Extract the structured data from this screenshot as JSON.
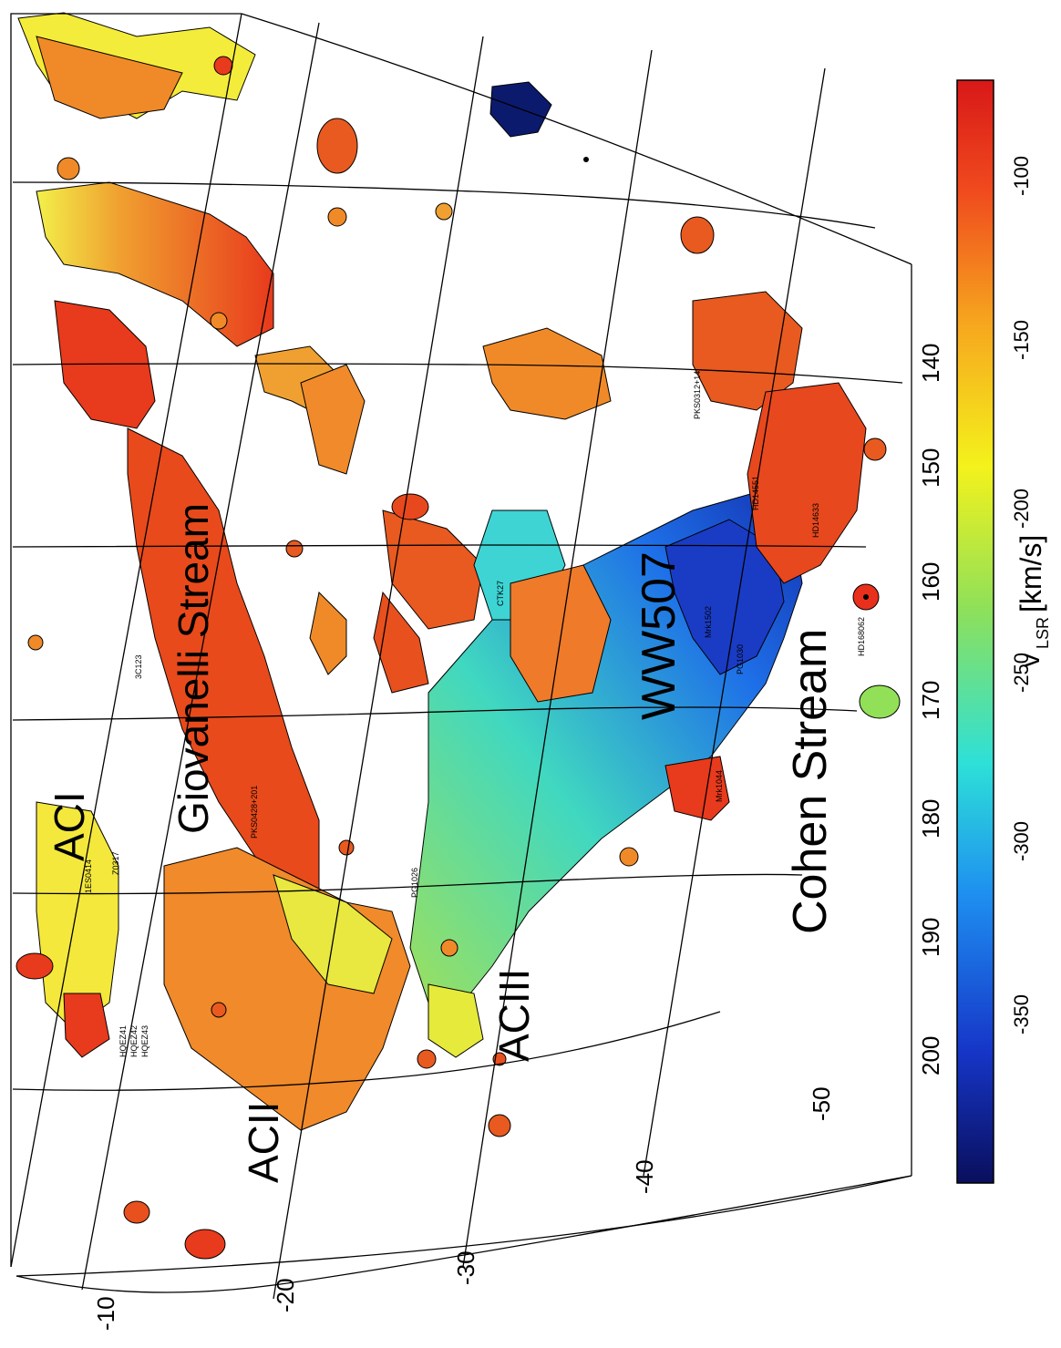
{
  "map": {
    "regions": {
      "aci": "ACI",
      "acii": "ACII",
      "aciii": "ACIII",
      "giovanelli": "Giovanelli Stream",
      "ww507": "WW507",
      "cohen": "Cohen Stream"
    },
    "x_ticks": [
      "140",
      "150",
      "160",
      "170",
      "180",
      "190",
      "200"
    ],
    "y_ticks": [
      "-10",
      "-20",
      "-30",
      "-40",
      "-50"
    ],
    "sources": {
      "pks": "PKS0428+201",
      "src3c123": "3C123",
      "pg": "PG1026",
      "ctk": "CTK27",
      "hd1": "HD168062",
      "hd2": "HD14551",
      "hd3": "HD14633",
      "heq_a": "HQEZ41",
      "heq_b": "HQEZ42",
      "heq_c": "HQEZ43",
      "s_top1": "1ES0414",
      "s_top2": "Z0317",
      "pkstop": "PKS0312+14",
      "misc1": "Mrk1502",
      "misc2": "PG1030",
      "misc3": "Mrk1044"
    }
  },
  "colorbar": {
    "label_main": "v",
    "label_sub": "LSR",
    "label_unit": "[km/s]",
    "ticks": [
      "-100",
      "-150",
      "-200",
      "-250",
      "-300",
      "-350"
    ],
    "stops": [
      "#0a0f5c",
      "#1636c8",
      "#1e8ef0",
      "#2de0d8",
      "#8ee05a",
      "#f4f21c",
      "#f6a61e",
      "#f04a1e",
      "#d81818"
    ]
  }
}
